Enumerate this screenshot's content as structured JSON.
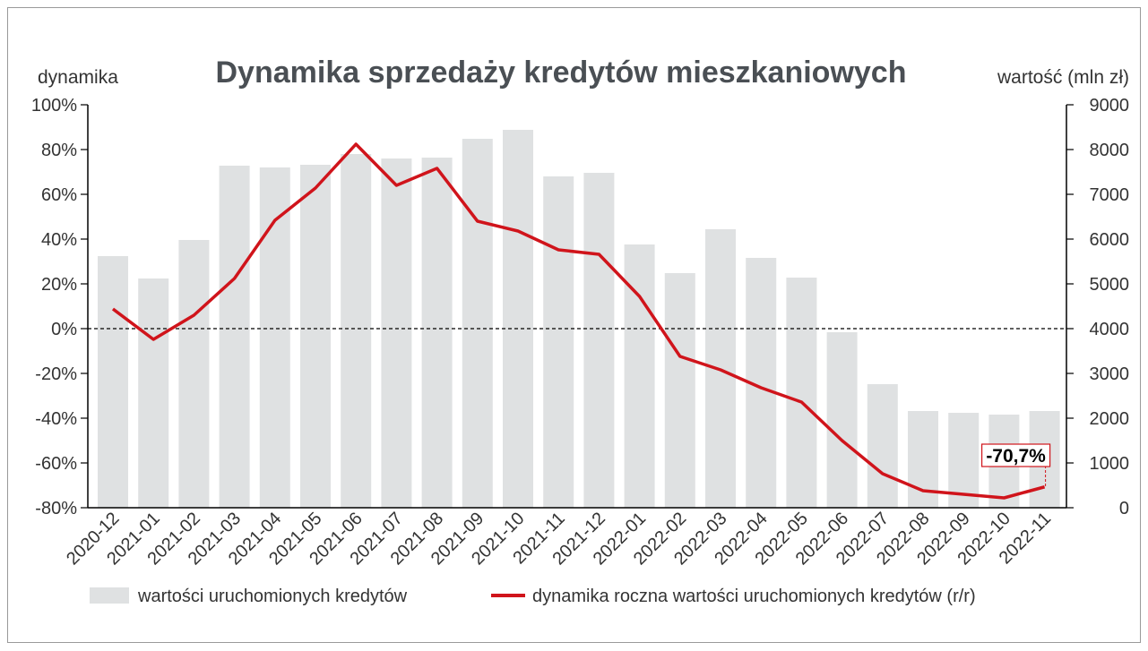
{
  "chart_data": {
    "type": "bar+line",
    "title": "Dynamika sprzedaży kredytów mieszkaniowych",
    "ylabel_left": "dynamika",
    "ylabel_right": "wartość (mln zł)",
    "ylim_left": [
      -80,
      100
    ],
    "ylim_right": [
      0,
      9000
    ],
    "yticks_left": [
      "100%",
      "80%",
      "60%",
      "40%",
      "20%",
      "0%",
      "-20%",
      "-40%",
      "-60%",
      "-80%"
    ],
    "yticks_right": [
      "9000",
      "8000",
      "7000",
      "6000",
      "5000",
      "4000",
      "3000",
      "2000",
      "1000",
      "0"
    ],
    "categories": [
      "2020-12",
      "2021-01",
      "2021-02",
      "2021-03",
      "2021-04",
      "2021-05",
      "2021-06",
      "2021-07",
      "2021-08",
      "2021-09",
      "2021-10",
      "2021-11",
      "2021-12",
      "2022-01",
      "2022-02",
      "2022-03",
      "2022-04",
      "2022-05",
      "2022-06",
      "2022-07",
      "2022-08",
      "2022-09",
      "2022-10",
      "2022-11"
    ],
    "series": [
      {
        "name": "wartości uruchomionych kredytów",
        "type": "bar",
        "axis": "right",
        "color": "#dfe1e2",
        "values": [
          5620,
          5120,
          5980,
          7640,
          7600,
          7660,
          7900,
          7800,
          7820,
          8240,
          8440,
          7400,
          7480,
          5880,
          5240,
          6220,
          5580,
          5140,
          3920,
          2760,
          2160,
          2120,
          2080,
          2160
        ]
      },
      {
        "name": "dynamika roczna wartości uruchomionych kredytów (r/r)",
        "type": "line",
        "axis": "left",
        "color": "#d0141b",
        "values": [
          8.8,
          -4.8,
          6,
          22.4,
          48.4,
          62.8,
          82.4,
          64,
          71.6,
          48,
          43.6,
          35.2,
          33.2,
          14.4,
          -12.4,
          -18.4,
          -26.4,
          -32.8,
          -50,
          -64.8,
          -72.4,
          -74,
          -75.6,
          -70.7
        ]
      }
    ],
    "annotation": {
      "label": "-70,7%",
      "category": "2022-11"
    },
    "reference_line": {
      "value": 0,
      "style": "dashed"
    },
    "grid": false,
    "legend_placement": "bottom"
  }
}
